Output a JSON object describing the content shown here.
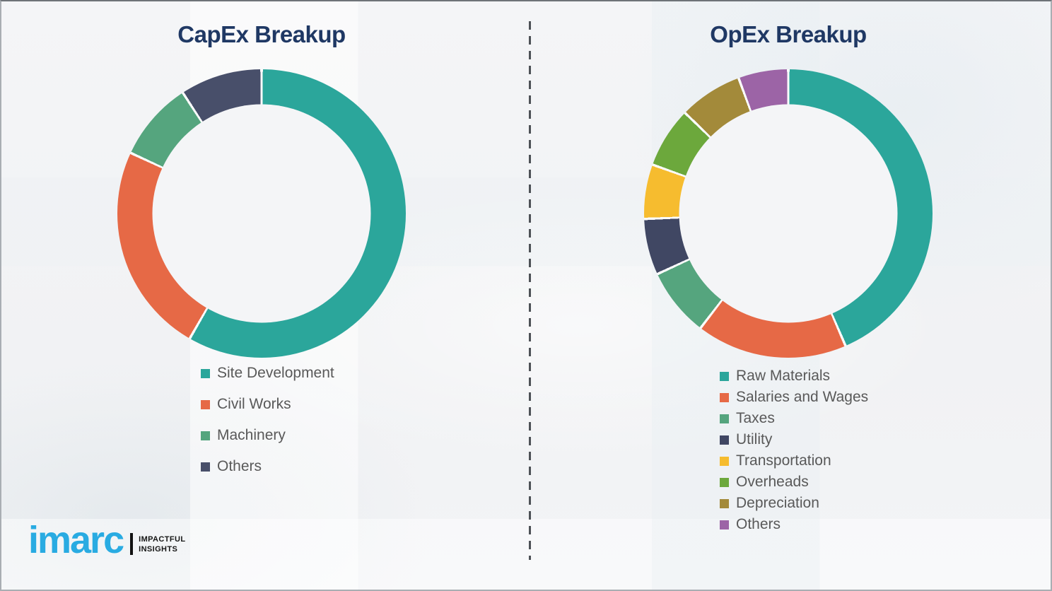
{
  "page": {
    "background_color": "#f2f3f5",
    "title_color": "#1f3864",
    "legend_text_color": "#595959",
    "divider_color": "#4d5156"
  },
  "chart_data": [
    {
      "type": "donut",
      "title": "CapEx Breakup",
      "legend_position": "below-left",
      "start_angle_deg": 0,
      "segments": [
        {
          "label": "Site Development",
          "color": "#2ba69b",
          "value_pct": 58.3
        },
        {
          "label": "Civil Works",
          "color": "#e66946",
          "value_pct": 23.6
        },
        {
          "label": "Machinery",
          "color": "#55a57e",
          "value_pct": 8.9
        },
        {
          "label": "Others",
          "color": "#484f6a",
          "value_pct": 9.2
        }
      ]
    },
    {
      "type": "donut",
      "title": "OpEx Breakup",
      "legend_position": "below-left",
      "start_angle_deg": 0,
      "segments": [
        {
          "label": "Raw Materials",
          "color": "#2ba69b",
          "value_pct": 43.5
        },
        {
          "label": "Salaries and Wages",
          "color": "#e66946",
          "value_pct": 16.9
        },
        {
          "label": "Taxes",
          "color": "#55a57e",
          "value_pct": 7.7
        },
        {
          "label": "Utility",
          "color": "#404763",
          "value_pct": 6.3
        },
        {
          "label": "Transportation",
          "color": "#f6bc2f",
          "value_pct": 6.1
        },
        {
          "label": "Overheads",
          "color": "#6ca83c",
          "value_pct": 6.8
        },
        {
          "label": "Depreciation",
          "color": "#a38a3a",
          "value_pct": 7.1
        },
        {
          "label": "Others",
          "color": "#9c64a6",
          "value_pct": 5.6
        }
      ]
    }
  ],
  "logo": {
    "brand": "imarc",
    "brand_color": "#29abe2",
    "tagline_line1": "IMPACTFUL",
    "tagline_line2": "INSIGHTS"
  }
}
